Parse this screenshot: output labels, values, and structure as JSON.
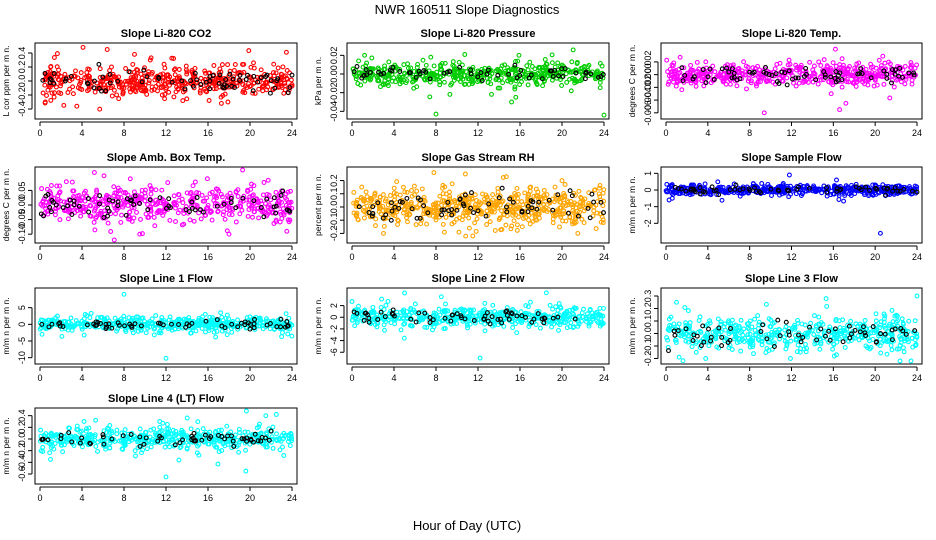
{
  "figure": {
    "title": "NWR  160511  Slope Diagnostics",
    "xlabel": "Hour of Day (UTC)"
  },
  "chart_data": [
    {
      "type": "scatter",
      "title": "Slope Li-820 CO2",
      "ylabel": "L cor ppm per m n.",
      "color": "#ff0000",
      "xlim": [
        0,
        24
      ],
      "xticks": [
        0,
        4,
        8,
        12,
        16,
        20,
        24
      ],
      "ylim": [
        -0.5,
        0.5
      ],
      "yticks": [
        -0.4,
        -0.2,
        0.0,
        0.2,
        0.4
      ],
      "ytick_labels": [
        "-0.4",
        "-0.2",
        "0.0",
        "0.2",
        "0.4"
      ],
      "spread": 0.11,
      "n_colored": 480,
      "n_black": 70,
      "outliers": [
        [
          4.1,
          0.48
        ],
        [
          6.4,
          0.45
        ],
        [
          0.5,
          -0.3
        ],
        [
          3.5,
          -0.36
        ],
        [
          9,
          0.38
        ],
        [
          10.5,
          0.3
        ],
        [
          13.6,
          -0.28
        ],
        [
          17.9,
          -0.3
        ]
      ],
      "seed": 11
    },
    {
      "type": "scatter",
      "title": "Slope Li-820 Pressure",
      "ylabel": "kPa per m n.",
      "color": "#00cc00",
      "xlim": [
        0,
        24
      ],
      "xticks": [
        0,
        4,
        8,
        12,
        16,
        20,
        24
      ],
      "ylim": [
        -0.045,
        0.03
      ],
      "yticks": [
        -0.04,
        -0.02,
        0.0,
        0.02
      ],
      "ytick_labels": [
        "-0.04",
        "-0.02",
        "0.00",
        "0.02"
      ],
      "spread": 0.006,
      "n_colored": 480,
      "n_black": 60,
      "outliers": [
        [
          8,
          -0.043
        ],
        [
          15.2,
          -0.03
        ],
        [
          15.6,
          -0.025
        ],
        [
          24,
          -0.044
        ],
        [
          15.9,
          0.02
        ],
        [
          1.2,
          0.02
        ],
        [
          7.5,
          0.018
        ]
      ],
      "seed": 23
    },
    {
      "type": "scatter",
      "title": "Slope Li-820 Temp.",
      "ylabel": "degrees C per m n.",
      "color": "#ff00ff",
      "xlim": [
        0,
        24
      ],
      "xticks": [
        0,
        4,
        8,
        12,
        16,
        20,
        24
      ],
      "ylim": [
        -0.0065,
        0.0045
      ],
      "yticks": [
        -0.006,
        -0.004,
        -0.002,
        0.0,
        0.002
      ],
      "ytick_labels": [
        "-0.006",
        "-0.004",
        "-0.002",
        "0.000",
        "0.002"
      ],
      "spread": 0.0009,
      "n_colored": 480,
      "n_black": 70,
      "outliers": [
        [
          16.2,
          0.004
        ],
        [
          16.6,
          -0.0055
        ],
        [
          17.2,
          -0.0045
        ],
        [
          9.4,
          -0.006
        ],
        [
          15.8,
          -0.003
        ],
        [
          14.6,
          0.002
        ]
      ],
      "seed": 37
    },
    {
      "type": "scatter",
      "title": "Slope Amb. Box Temp.",
      "ylabel": "degrees C per m n.",
      "color": "#ff00ff",
      "xlim": [
        0,
        24
      ],
      "xticks": [
        0,
        4,
        8,
        12,
        16,
        20,
        24
      ],
      "ylim": [
        -0.12,
        0.12
      ],
      "yticks": [
        -0.1,
        -0.05,
        0.0,
        0.05
      ],
      "ytick_labels": [
        "-0.10",
        "-0.05",
        "0.00",
        "0.05"
      ],
      "spread": 0.03,
      "n_colored": 480,
      "n_black": 70,
      "outliers": [
        [
          6.1,
          0.1
        ],
        [
          8.6,
          0.09
        ],
        [
          2.5,
          0.08
        ],
        [
          18,
          -0.1
        ],
        [
          23.5,
          -0.09
        ],
        [
          9.5,
          -0.1
        ]
      ],
      "seed": 41
    },
    {
      "type": "scatter",
      "title": "Slope Gas Stream RH",
      "ylabel": "percent per m n.",
      "color": "#ffa500",
      "xlim": [
        0,
        24
      ],
      "xticks": [
        0,
        4,
        8,
        12,
        16,
        20,
        24
      ],
      "ylim": [
        -0.25,
        0.28
      ],
      "yticks": [
        -0.2,
        -0.1,
        0.0,
        0.1,
        0.2
      ],
      "ytick_labels": [
        "-0.2",
        "-0.1",
        "0.0",
        "0.1",
        "0.2"
      ],
      "spread": 0.07,
      "n_colored": 560,
      "n_black": 70,
      "outliers": [
        [
          7.8,
          0.26
        ],
        [
          10.8,
          0.25
        ],
        [
          3,
          -0.2
        ],
        [
          11.5,
          -0.22
        ],
        [
          20,
          0.2
        ],
        [
          21.5,
          -0.2
        ]
      ],
      "seed": 53
    },
    {
      "type": "scatter",
      "title": "Slope Sample Flow",
      "ylabel": "m/m n per m n.",
      "color": "#0000ff",
      "xlim": [
        0,
        24
      ],
      "xticks": [
        0,
        4,
        8,
        12,
        16,
        20,
        24
      ],
      "ylim": [
        -3.0,
        1.2
      ],
      "yticks": [
        -2,
        -1,
        0,
        1
      ],
      "ytick_labels": [
        "-2",
        "-1",
        "0",
        "1"
      ],
      "spread": 0.15,
      "n_colored": 480,
      "n_black": 60,
      "outliers": [
        [
          20.5,
          -2.6
        ],
        [
          11.8,
          0.9
        ],
        [
          16.3,
          0.6
        ],
        [
          0.3,
          -0.6
        ],
        [
          0.6,
          -0.5
        ]
      ],
      "seed": 61
    },
    {
      "type": "scatter",
      "title": "Slope Line 1 Flow",
      "ylabel": "m/m n per m n.",
      "color": "#00ffff",
      "xlim": [
        0,
        24
      ],
      "xticks": [
        0,
        4,
        8,
        12,
        16,
        20,
        24
      ],
      "ylim": [
        -11,
        10
      ],
      "yticks": [
        -10,
        -5,
        0,
        5
      ],
      "ytick_labels": [
        "-10",
        "-5",
        "0",
        "5"
      ],
      "spread": 1.0,
      "n_colored": 480,
      "n_black": 60,
      "outliers": [
        [
          8,
          9
        ],
        [
          12,
          -10.2
        ],
        [
          0.2,
          -3
        ],
        [
          4.3,
          3
        ],
        [
          17.2,
          3.5
        ]
      ],
      "seed": 71
    },
    {
      "type": "scatter",
      "title": "Slope Line 2 Flow",
      "ylabel": "m/m n per m n.",
      "color": "#00ffff",
      "xlim": [
        0,
        24
      ],
      "xticks": [
        0,
        4,
        8,
        12,
        16,
        20,
        24
      ],
      "ylim": [
        -7.5,
        4.5
      ],
      "yticks": [
        -6,
        -4,
        -2,
        0,
        2
      ],
      "ytick_labels": [
        "-6",
        "-4",
        "-2",
        "0",
        "2"
      ],
      "spread": 0.9,
      "n_colored": 480,
      "n_black": 60,
      "outliers": [
        [
          0,
          2.7
        ],
        [
          12.2,
          -7
        ],
        [
          18.5,
          4.2
        ],
        [
          8.5,
          3.5
        ]
      ],
      "seed": 83
    },
    {
      "type": "scatter",
      "title": "Slope Line 3 Flow",
      "ylabel": "m/m n per m n.",
      "color": "#00ffff",
      "xlim": [
        0,
        24
      ],
      "xticks": [
        0,
        4,
        8,
        12,
        16,
        20,
        24
      ],
      "ylim": [
        -0.22,
        0.34
      ],
      "yticks": [
        -0.2,
        -0.1,
        0.0,
        0.1,
        0.2,
        0.3
      ],
      "ytick_labels": [
        "-0.2",
        "-0.1",
        "0.0",
        "0.1",
        "0.2",
        "0.3"
      ],
      "spread": 0.07,
      "n_colored": 480,
      "n_black": 60,
      "outliers": [
        [
          24,
          0.3
        ],
        [
          1,
          0.25
        ],
        [
          11.9,
          -0.2
        ],
        [
          3.8,
          -0.2
        ],
        [
          2.9,
          -0.15
        ]
      ],
      "seed": 97
    },
    {
      "type": "scatter",
      "title": "Slope Line 4 (LT) Flow",
      "ylabel": "m/m n per m n.",
      "color": "#00ffff",
      "xlim": [
        0,
        24
      ],
      "xticks": [
        0,
        4,
        8,
        12,
        16,
        20,
        24
      ],
      "ylim": [
        -0.72,
        0.48
      ],
      "yticks": [
        -0.6,
        -0.4,
        -0.2,
        0.0,
        0.2,
        0.4
      ],
      "ytick_labels": [
        "-0.6",
        "-0.4",
        "-0.2",
        "0.0",
        "0.2",
        "0.4"
      ],
      "spread": 0.09,
      "n_colored": 480,
      "n_black": 60,
      "outliers": [
        [
          12,
          -0.65
        ],
        [
          19.6,
          -0.55
        ],
        [
          1,
          -0.35
        ],
        [
          4.2,
          0.3
        ],
        [
          21.5,
          0.4
        ],
        [
          22.5,
          0.42
        ],
        [
          11.4,
          0.3
        ]
      ],
      "seed": 101
    }
  ]
}
